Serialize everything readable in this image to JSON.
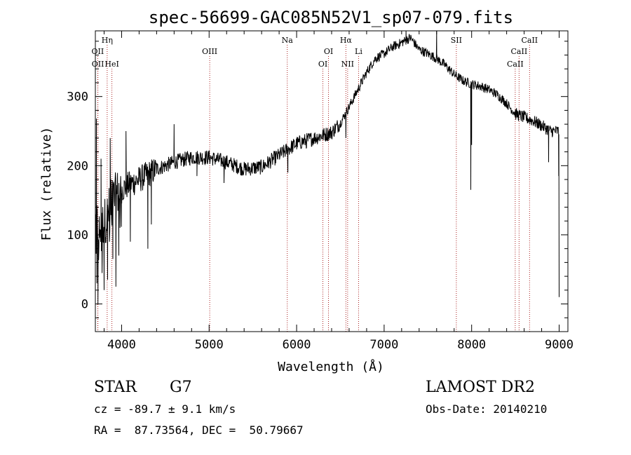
{
  "chart_data": {
    "type": "line",
    "title": "spec-56699-GAC085N52V1_sp07-079.fits",
    "xlabel": "Wavelength (Å)",
    "ylabel": "Flux (relative)",
    "xlim": [
      3700,
      9100
    ],
    "ylim": [
      -40,
      395
    ],
    "xticks": [
      4000,
      5000,
      6000,
      7000,
      8000,
      9000
    ],
    "yticks": [
      0,
      100,
      200,
      300
    ],
    "grid": false,
    "legend": "none",
    "line_color": "#000000",
    "marker_color": "#aa2222",
    "spectral_lines": [
      {
        "name": "Hη",
        "x": 3835,
        "row": 0
      },
      {
        "name": "OII",
        "x": 3727,
        "row": 1
      },
      {
        "name": "OII",
        "x": 3729,
        "row": 2
      },
      {
        "name": "HeI",
        "x": 3889,
        "row": 2
      },
      {
        "name": "OIII",
        "x": 5007,
        "row": 1
      },
      {
        "name": "Na",
        "x": 5893,
        "row": 0
      },
      {
        "name": "OI",
        "x": 6364,
        "row": 1
      },
      {
        "name": "OI",
        "x": 6300,
        "row": 2
      },
      {
        "name": "Hα",
        "x": 6563,
        "row": 0
      },
      {
        "name": "NII",
        "x": 6583,
        "row": 2
      },
      {
        "name": "Li",
        "x": 6708,
        "row": 1
      },
      {
        "name": "SII",
        "x": 7825,
        "row": 0
      },
      {
        "name": "CaII",
        "x": 8662,
        "row": 0
      },
      {
        "name": "CaII",
        "x": 8542,
        "row": 1
      },
      {
        "name": "CaII",
        "x": 8498,
        "row": 2
      }
    ],
    "anchors": [
      [
        3700,
        120
      ],
      [
        3740,
        110
      ],
      [
        3780,
        115
      ],
      [
        3830,
        125
      ],
      [
        3880,
        145
      ],
      [
        3950,
        160
      ],
      [
        4050,
        170
      ],
      [
        4200,
        180
      ],
      [
        4400,
        195
      ],
      [
        4600,
        205
      ],
      [
        4800,
        212
      ],
      [
        5000,
        212
      ],
      [
        5200,
        205
      ],
      [
        5400,
        195
      ],
      [
        5600,
        198
      ],
      [
        5800,
        215
      ],
      [
        6000,
        232
      ],
      [
        6200,
        240
      ],
      [
        6400,
        248
      ],
      [
        6500,
        262
      ],
      [
        6600,
        285
      ],
      [
        6700,
        310
      ],
      [
        6800,
        335
      ],
      [
        6900,
        355
      ],
      [
        7000,
        362
      ],
      [
        7100,
        372
      ],
      [
        7200,
        378
      ],
      [
        7300,
        385
      ],
      [
        7400,
        368
      ],
      [
        7500,
        362
      ],
      [
        7600,
        355
      ],
      [
        7700,
        345
      ],
      [
        7800,
        332
      ],
      [
        7900,
        323
      ],
      [
        8000,
        318
      ],
      [
        8100,
        315
      ],
      [
        8200,
        310
      ],
      [
        8300,
        302
      ],
      [
        8400,
        290
      ],
      [
        8500,
        275
      ],
      [
        8600,
        270
      ],
      [
        8700,
        265
      ],
      [
        8800,
        258
      ],
      [
        8900,
        250
      ],
      [
        8990,
        250
      ]
    ],
    "features": [
      {
        "x": 3712,
        "y": 268
      },
      {
        "x": 3718,
        "y": 30
      },
      {
        "x": 3730,
        "y": 0
      },
      {
        "x": 3765,
        "y": 210
      },
      {
        "x": 3800,
        "y": 20
      },
      {
        "x": 3840,
        "y": 35
      },
      {
        "x": 3870,
        "y": 240
      },
      {
        "x": 3900,
        "y": 65
      },
      {
        "x": 3935,
        "y": 25
      },
      {
        "x": 3968,
        "y": 70
      },
      {
        "x": 4000,
        "y": 160
      },
      {
        "x": 4050,
        "y": 250
      },
      {
        "x": 4100,
        "y": 90
      },
      {
        "x": 4300,
        "y": 80
      },
      {
        "x": 4340,
        "y": 115
      },
      {
        "x": 4600,
        "y": 260
      },
      {
        "x": 4861,
        "y": 185
      },
      {
        "x": 5170,
        "y": 175
      },
      {
        "x": 5900,
        "y": 190
      },
      {
        "x": 6110,
        "y": 225
      },
      {
        "x": 6563,
        "y": 240
      },
      {
        "x": 7250,
        "y": 395
      },
      {
        "x": 7600,
        "y": 395
      },
      {
        "x": 7990,
        "y": 165
      },
      {
        "x": 8000,
        "y": 230
      },
      {
        "x": 8880,
        "y": 205
      },
      {
        "x": 8995,
        "y": 185
      },
      {
        "x": 9000,
        "y": 10
      }
    ]
  },
  "info": {
    "object_type": "STAR",
    "subclass": "G7",
    "survey": "LAMOST DR2",
    "cz": "cz = -89.7 ± 9.1 km/s",
    "obs_date": "Obs-Date: 20140210",
    "coords": "RA =  87.73564, DEC =  50.79667"
  }
}
